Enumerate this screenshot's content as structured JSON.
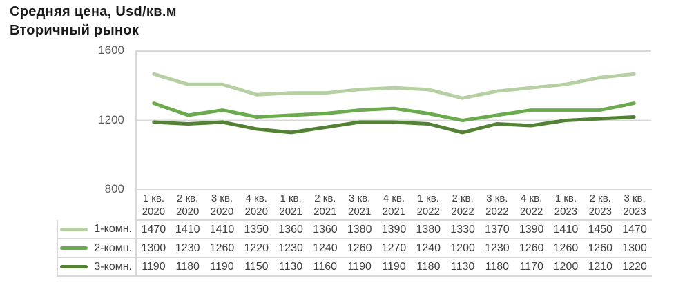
{
  "title": {
    "line1": "Средняя цена, Usd/кв.м",
    "line2": "Вторичный рынок"
  },
  "palette": {
    "series1": "#b7d0a3",
    "series2": "#6caa4e",
    "series3": "#548235",
    "gridline": "#d9d9d9",
    "tick_text": "#595959",
    "table_text": "#3f3f3f",
    "title_text": "#1a1a1a"
  },
  "chart_data": {
    "type": "line",
    "title": "Средняя цена, Usd/кв.м — Вторичный рынок",
    "categories": [
      {
        "quarter": "1 кв.",
        "year": "2020"
      },
      {
        "quarter": "2 кв.",
        "year": "2020"
      },
      {
        "quarter": "3 кв.",
        "year": "2020"
      },
      {
        "quarter": "4 кв.",
        "year": "2020"
      },
      {
        "quarter": "1 кв.",
        "year": "2021"
      },
      {
        "quarter": "2 кв.",
        "year": "2021"
      },
      {
        "quarter": "3 кв.",
        "year": "2021"
      },
      {
        "quarter": "4 кв.",
        "year": "2021"
      },
      {
        "quarter": "1 кв.",
        "year": "2022"
      },
      {
        "quarter": "2 кв.",
        "year": "2022"
      },
      {
        "quarter": "3 кв.",
        "year": "2022"
      },
      {
        "quarter": "4 кв.",
        "year": "2022"
      },
      {
        "quarter": "1 кв.",
        "year": "2023"
      },
      {
        "quarter": "2 кв.",
        "year": "2023"
      },
      {
        "quarter": "3 кв.",
        "year": "2023"
      }
    ],
    "series": [
      {
        "name": "1-комн.",
        "color": "#b7d0a3",
        "values": [
          1470,
          1410,
          1410,
          1350,
          1360,
          1360,
          1380,
          1390,
          1380,
          1330,
          1370,
          1390,
          1410,
          1450,
          1470
        ]
      },
      {
        "name": "2-комн.",
        "color": "#6caa4e",
        "values": [
          1300,
          1230,
          1260,
          1220,
          1230,
          1240,
          1260,
          1270,
          1240,
          1200,
          1230,
          1260,
          1260,
          1260,
          1300
        ]
      },
      {
        "name": "3-комн.",
        "color": "#548235",
        "values": [
          1190,
          1180,
          1190,
          1150,
          1130,
          1160,
          1190,
          1190,
          1180,
          1130,
          1180,
          1170,
          1200,
          1210,
          1220
        ]
      }
    ],
    "ylim": [
      800,
      1600
    ],
    "yticks": [
      1600,
      1200,
      800
    ],
    "grid": "horizontal-only",
    "legend_position": "left-of-data-table",
    "data_table_shown": true
  }
}
